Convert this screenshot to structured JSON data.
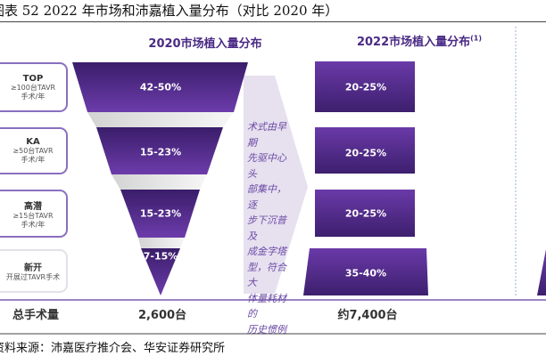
{
  "figure_title": "图表 52 2022 年市场和沛嘉植入量分布（对比 2020 年）",
  "left_header": "2020市场植入量分布",
  "right_header": "2022市场植入量分布",
  "right_header_note": "(1)",
  "tiers": [
    {
      "name": "TOP",
      "desc1": "≥100台TAVR",
      "desc2": "手术/年",
      "share_2020": "42-50%",
      "share_2022": "20-25%"
    },
    {
      "name": "KA",
      "desc1": "≥50台TAVR",
      "desc2": "手术/年",
      "share_2020": "15-23%",
      "share_2022": "20-25%"
    },
    {
      "name": "高潜",
      "desc1": "≥15台TAVR",
      "desc2": "手术/年",
      "share_2020": "15-23%",
      "share_2022": "20-25%"
    },
    {
      "name": "新开",
      "desc1": "开展过TAVR手术",
      "desc2": "",
      "share_2020": "7-15%",
      "share_2022": "35-40%"
    }
  ],
  "arrow_note_lines": [
    "术式由早期",
    "先驱中心头",
    "部集中，逐",
    "步下沉普及",
    "成金字塔",
    "型，符合大",
    "体量耗材的",
    "历史惯例"
  ],
  "totals": {
    "label": "总手术量",
    "total_2020": "2,600台",
    "total_2022": "约7,400台"
  },
  "source": "资料来源：沛嘉医疗推介会、华安证券研究所",
  "colors": {
    "purple_dark": "#3d1f6e",
    "purple_light": "#6a3aa8",
    "arrow": "#e6e0ef",
    "accent": "#4a2a85"
  }
}
